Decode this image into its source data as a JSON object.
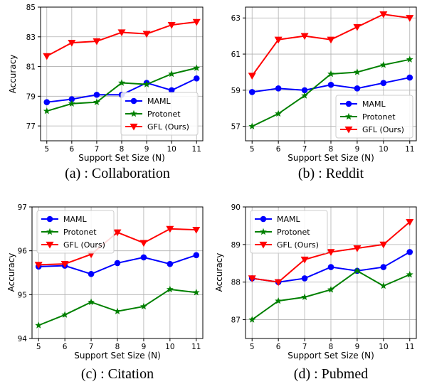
{
  "chart_data": [
    {
      "type": "line",
      "caption": "(a) : Collaboration",
      "xlabel": "Support Set Size (N)",
      "ylabel": "Accuracy",
      "x": [
        5,
        6,
        7,
        8,
        9,
        10,
        11
      ],
      "xlim": [
        4.75,
        11.25
      ],
      "ylim": [
        76.0,
        85.0
      ],
      "yticks": [
        77,
        79,
        81,
        83,
        85
      ],
      "legend_position": "lower-right",
      "grid": true,
      "series": [
        {
          "name": "MAML",
          "color": "#0000ff",
          "marker": "circle",
          "values": [
            78.6,
            78.8,
            79.1,
            79.1,
            79.9,
            79.4,
            80.2
          ]
        },
        {
          "name": "Protonet",
          "color": "#008000",
          "marker": "star",
          "values": [
            78.0,
            78.5,
            78.6,
            79.9,
            79.8,
            80.5,
            80.9
          ]
        },
        {
          "name": "GFL (Ours)",
          "color": "#ff0000",
          "marker": "triangle-down",
          "values": [
            81.7,
            82.6,
            82.7,
            83.3,
            83.2,
            83.8,
            84.0
          ]
        }
      ]
    },
    {
      "type": "line",
      "caption": "(b) : Reddit",
      "xlabel": "Support Set Size (N)",
      "ylabel": "",
      "x": [
        5,
        6,
        7,
        8,
        9,
        10,
        11
      ],
      "xlim": [
        4.75,
        11.25
      ],
      "ylim": [
        56.2,
        63.6
      ],
      "yticks": [
        57,
        59,
        61,
        63
      ],
      "legend_position": "lower-right",
      "grid": true,
      "series": [
        {
          "name": "MAML",
          "color": "#0000ff",
          "marker": "circle",
          "values": [
            58.9,
            59.1,
            59.0,
            59.3,
            59.1,
            59.4,
            59.7
          ]
        },
        {
          "name": "Protonet",
          "color": "#008000",
          "marker": "star",
          "values": [
            57.0,
            57.7,
            58.7,
            59.9,
            60.0,
            60.4,
            60.7
          ]
        },
        {
          "name": "GFL (Ours)",
          "color": "#ff0000",
          "marker": "triangle-down",
          "values": [
            59.8,
            61.8,
            62.0,
            61.8,
            62.5,
            63.2,
            63.0
          ]
        }
      ]
    },
    {
      "type": "line",
      "caption": "(c) : Citation",
      "xlabel": "Support Set Size (N)",
      "ylabel": "Accuracy",
      "x": [
        5,
        6,
        7,
        8,
        9,
        10,
        11
      ],
      "xlim": [
        4.75,
        11.25
      ],
      "ylim": [
        94.0,
        97.0
      ],
      "yticks": [
        94,
        95,
        96,
        97
      ],
      "legend_position": "upper-left",
      "grid": true,
      "series": [
        {
          "name": "MAML",
          "color": "#0000ff",
          "marker": "circle",
          "values": [
            95.64,
            95.66,
            95.47,
            95.72,
            95.85,
            95.7,
            95.9
          ]
        },
        {
          "name": "Protonet",
          "color": "#008000",
          "marker": "star",
          "values": [
            94.3,
            94.54,
            94.83,
            94.62,
            94.73,
            95.12,
            95.05
          ]
        },
        {
          "name": "GFL (Ours)",
          "color": "#ff0000",
          "marker": "triangle-down",
          "values": [
            95.68,
            95.7,
            95.92,
            96.42,
            96.18,
            96.5,
            96.48
          ]
        }
      ]
    },
    {
      "type": "line",
      "caption": "(d) : Pubmed",
      "xlabel": "Support Set Size (N)",
      "ylabel": "Accuracy",
      "x": [
        5,
        6,
        7,
        8,
        9,
        10,
        11
      ],
      "xlim": [
        4.75,
        11.25
      ],
      "ylim": [
        86.5,
        90.0
      ],
      "yticks": [
        87,
        88,
        89,
        90
      ],
      "legend_position": "upper-left",
      "grid": true,
      "series": [
        {
          "name": "MAML",
          "color": "#0000ff",
          "marker": "circle",
          "values": [
            88.1,
            88.0,
            88.1,
            88.4,
            88.3,
            88.4,
            88.8
          ]
        },
        {
          "name": "Protonet",
          "color": "#008000",
          "marker": "star",
          "values": [
            87.0,
            87.5,
            87.6,
            87.8,
            88.3,
            87.9,
            88.2
          ]
        },
        {
          "name": "GFL (Ours)",
          "color": "#ff0000",
          "marker": "triangle-down",
          "values": [
            88.1,
            88.0,
            88.6,
            88.8,
            88.9,
            89.0,
            89.6
          ]
        }
      ]
    }
  ]
}
